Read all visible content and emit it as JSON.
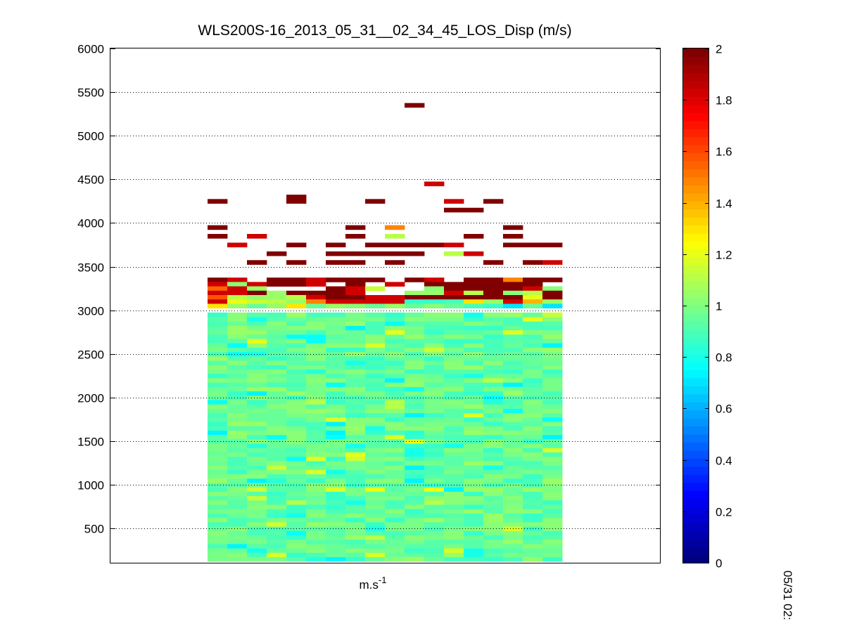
{
  "chart_data": {
    "type": "heatmap",
    "title": "WLS200S-16_2013_05_31__02_34_45_LOS_Disp (m/s)",
    "xlabel_base": "m.s",
    "xlabel_exp": "-1",
    "side_label": "05/31 02:",
    "ylim": [
      100,
      6000
    ],
    "yticks": [
      500,
      1000,
      1500,
      2000,
      2500,
      3000,
      3500,
      4000,
      4500,
      5000,
      5500,
      6000
    ],
    "grid": "horizontal dotted",
    "colormap": "jet",
    "clim": [
      0,
      2
    ],
    "colorbar_ticks": [
      0,
      0.2,
      0.4,
      0.6,
      0.8,
      1,
      1.2,
      1.4,
      1.6,
      1.8,
      2
    ],
    "columns": 18,
    "range_gate_m": 50,
    "description_values": {
      "low_altitude_typical": 0.95,
      "upper_cloud_typical": 2.0
    },
    "upper_cells": [
      {
        "c": 0,
        "z": 4250,
        "v": 2.0
      },
      {
        "c": 4,
        "z": 4300,
        "v": 2.0
      },
      {
        "c": 4,
        "z": 4250,
        "v": 2.0
      },
      {
        "c": 8,
        "z": 4250,
        "v": 2.0
      },
      {
        "c": 10,
        "z": 5350,
        "v": 2.0
      },
      {
        "c": 11,
        "z": 4450,
        "v": 1.85
      },
      {
        "c": 12,
        "z": 4250,
        "v": 1.85
      },
      {
        "c": 12,
        "z": 4150,
        "v": 2.0
      },
      {
        "c": 13,
        "z": 4150,
        "v": 2.0
      },
      {
        "c": 14,
        "z": 4250,
        "v": 2.0
      },
      {
        "c": 0,
        "z": 3950,
        "v": 2.0
      },
      {
        "c": 0,
        "z": 3850,
        "v": 2.0
      },
      {
        "c": 1,
        "z": 3750,
        "v": 1.85
      },
      {
        "c": 2,
        "z": 3850,
        "v": 1.85
      },
      {
        "c": 2,
        "z": 3550,
        "v": 2.0
      },
      {
        "c": 3,
        "z": 3650,
        "v": 2.0
      },
      {
        "c": 4,
        "z": 3750,
        "v": 2.0
      },
      {
        "c": 4,
        "z": 3550,
        "v": 2.0
      },
      {
        "c": 6,
        "z": 3750,
        "v": 2.0
      },
      {
        "c": 6,
        "z": 3650,
        "v": 2.0
      },
      {
        "c": 6,
        "z": 3550,
        "v": 2.0
      },
      {
        "c": 7,
        "z": 3950,
        "v": 2.0
      },
      {
        "c": 7,
        "z": 3850,
        "v": 2.0
      },
      {
        "c": 7,
        "z": 3650,
        "v": 2.0
      },
      {
        "c": 7,
        "z": 3550,
        "v": 2.0
      },
      {
        "c": 8,
        "z": 3750,
        "v": 2.0
      },
      {
        "c": 8,
        "z": 3650,
        "v": 2.0
      },
      {
        "c": 9,
        "z": 3950,
        "v": 1.5
      },
      {
        "c": 9,
        "z": 3850,
        "v": 1.1
      },
      {
        "c": 9,
        "z": 3750,
        "v": 2.0
      },
      {
        "c": 9,
        "z": 3650,
        "v": 2.0
      },
      {
        "c": 9,
        "z": 3550,
        "v": 2.0
      },
      {
        "c": 10,
        "z": 3750,
        "v": 2.0
      },
      {
        "c": 10,
        "z": 3650,
        "v": 2.0
      },
      {
        "c": 11,
        "z": 3750,
        "v": 2.0
      },
      {
        "c": 12,
        "z": 3750,
        "v": 1.85
      },
      {
        "c": 12,
        "z": 3650,
        "v": 1.1
      },
      {
        "c": 13,
        "z": 3850,
        "v": 2.0
      },
      {
        "c": 13,
        "z": 3650,
        "v": 1.85
      },
      {
        "c": 14,
        "z": 3550,
        "v": 2.0
      },
      {
        "c": 15,
        "z": 3950,
        "v": 2.0
      },
      {
        "c": 15,
        "z": 3850,
        "v": 2.0
      },
      {
        "c": 15,
        "z": 3750,
        "v": 2.0
      },
      {
        "c": 16,
        "z": 3750,
        "v": 2.0
      },
      {
        "c": 16,
        "z": 3550,
        "v": 2.0
      },
      {
        "c": 17,
        "z": 3750,
        "v": 2.0
      },
      {
        "c": 17,
        "z": 3550,
        "v": 1.85
      }
    ],
    "band_3000_3500": [
      [
        2.0,
        1.85,
        1.55,
        1.85,
        1.6,
        1.85,
        1.3
      ],
      [
        1.85,
        1.0,
        1.85,
        1.85,
        1.1,
        1.2,
        1.05
      ],
      [
        null,
        1.85,
        1.05,
        2.0,
        1.05,
        1.15,
        0.95
      ],
      [
        2.0,
        2.0,
        null,
        1.05,
        1.05,
        1.1,
        1.05
      ],
      [
        2.0,
        2.0,
        null,
        2.0,
        1.1,
        1.05,
        1.3
      ],
      [
        1.85,
        1.85,
        null,
        2.0,
        1.85,
        1.5,
        0.95
      ],
      [
        2.0,
        null,
        2.0,
        2.0,
        2.0,
        1.85,
        1.05
      ],
      [
        2.0,
        2.0,
        1.85,
        1.85,
        2.0,
        1.85,
        1.0
      ],
      [
        2.0,
        null,
        1.15,
        null,
        1.85,
        1.85,
        0.95
      ],
      [
        null,
        1.85,
        null,
        null,
        1.85,
        1.85,
        1.05
      ],
      [
        2.0,
        null,
        null,
        1.05,
        2.0,
        0.85,
        0.95
      ],
      [
        1.85,
        2.0,
        1.0,
        1.05,
        2.0,
        0.85,
        1.0
      ],
      [
        null,
        2.0,
        2.0,
        1.85,
        2.0,
        0.9,
        0.95
      ],
      [
        2.0,
        2.0,
        2.0,
        1.1,
        2.0,
        1.3,
        0.9
      ],
      [
        2.0,
        2.0,
        2.0,
        2.0,
        2.0,
        1.05,
        0.85
      ],
      [
        1.5,
        2.0,
        2.0,
        1.0,
        2.0,
        1.85,
        0.7
      ],
      [
        2.0,
        2.0,
        1.85,
        1.1,
        1.2,
        1.4,
        0.95
      ],
      [
        2.0,
        null,
        1.0,
        2.0,
        2.0,
        1.05,
        0.7
      ]
    ]
  }
}
